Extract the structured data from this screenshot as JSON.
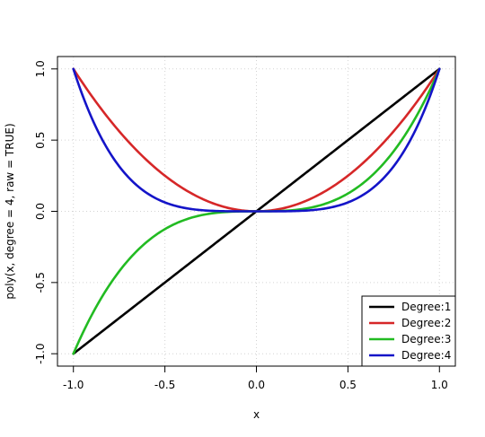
{
  "chart_data": {
    "type": "line",
    "xlabel": "x",
    "ylabel": "poly(x, degree = 4, raw = TRUE)",
    "xlim": [
      -1.0,
      1.0
    ],
    "ylim": [
      -1.0,
      1.0
    ],
    "xticks": [
      "-1.0",
      "-0.5",
      "0.0",
      "0.5",
      "1.0"
    ],
    "yticks": [
      "-1.0",
      "-0.5",
      "0.0",
      "0.5",
      "1.0"
    ],
    "grid": true,
    "legend_position": "bottom-right",
    "x": [
      -1.0,
      -0.9,
      -0.8,
      -0.7,
      -0.6,
      -0.5,
      -0.4,
      -0.3,
      -0.2,
      -0.1,
      0.0,
      0.1,
      0.2,
      0.3,
      0.4,
      0.5,
      0.6,
      0.7,
      0.8,
      0.9,
      1.0
    ],
    "series": [
      {
        "name": "Degree:1",
        "color": "#000000",
        "values": [
          -1.0,
          -0.9,
          -0.8,
          -0.7,
          -0.6,
          -0.5,
          -0.4,
          -0.3,
          -0.2,
          -0.1,
          0.0,
          0.1,
          0.2,
          0.3,
          0.4,
          0.5,
          0.6,
          0.7,
          0.8,
          0.9,
          1.0
        ]
      },
      {
        "name": "Degree:2",
        "color": "#d62728",
        "values": [
          1.0,
          0.81,
          0.64,
          0.49,
          0.36,
          0.25,
          0.16,
          0.09,
          0.04,
          0.01,
          0.0,
          0.01,
          0.04,
          0.09,
          0.16,
          0.25,
          0.36,
          0.49,
          0.64,
          0.81,
          1.0
        ]
      },
      {
        "name": "Degree:3",
        "color": "#22bb22",
        "values": [
          -1.0,
          -0.729,
          -0.512,
          -0.343,
          -0.216,
          -0.125,
          -0.064,
          -0.027,
          -0.008,
          -0.001,
          0.0,
          0.001,
          0.008,
          0.027,
          0.064,
          0.125,
          0.216,
          0.343,
          0.512,
          0.729,
          1.0
        ]
      },
      {
        "name": "Degree:4",
        "color": "#1414c8",
        "values": [
          1.0,
          0.6561,
          0.4096,
          0.2401,
          0.1296,
          0.0625,
          0.0256,
          0.0081,
          0.0016,
          0.0001,
          0.0,
          0.0001,
          0.0016,
          0.0081,
          0.0256,
          0.0625,
          0.1296,
          0.2401,
          0.4096,
          0.6561,
          1.0
        ]
      }
    ]
  }
}
